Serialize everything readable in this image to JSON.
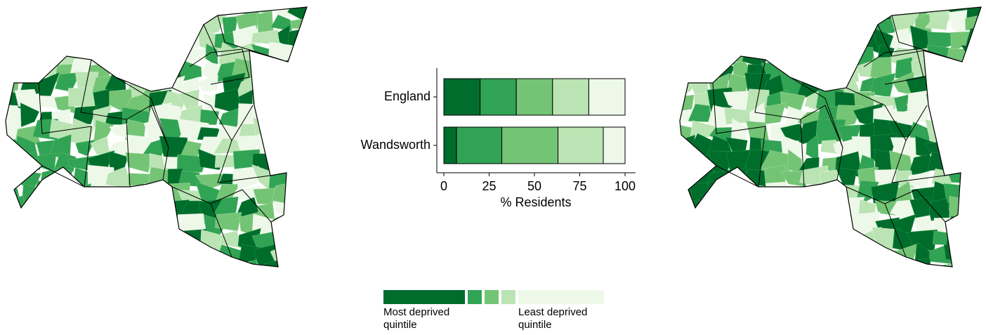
{
  "chart_data": {
    "type": "bar",
    "orientation": "horizontal",
    "stacked": true,
    "categories": [
      "England",
      "Wandsworth"
    ],
    "series": [
      {
        "color": "#006d2c",
        "values": [
          20,
          7
        ]
      },
      {
        "color": "#31a354",
        "values": [
          20,
          25
        ]
      },
      {
        "color": "#74c476",
        "values": [
          20,
          31
        ]
      },
      {
        "color": "#bae4b3",
        "values": [
          20,
          25
        ]
      },
      {
        "color": "#edf8e9",
        "values": [
          20,
          12
        ]
      }
    ],
    "xlabel": "% Residents",
    "xlim": [
      0,
      100
    ],
    "xticks": [
      0,
      25,
      50,
      75,
      100
    ],
    "legend": {
      "labels": [
        "Most deprived quintile",
        "Least deprived quintile"
      ]
    }
  }
}
